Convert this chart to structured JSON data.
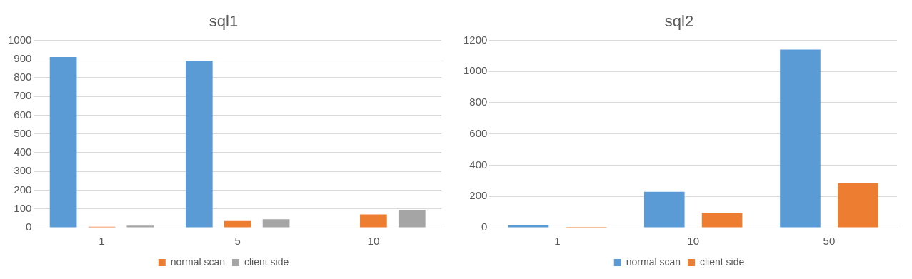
{
  "chart_data": [
    {
      "type": "bar",
      "title": "sql1",
      "categories": [
        "1",
        "5",
        "10"
      ],
      "series": [
        {
          "color": "#5b9bd5",
          "values": [
            910,
            890,
            null
          ]
        },
        {
          "name": "normal scan",
          "color": "#ed7d31",
          "values": [
            5,
            35,
            70
          ]
        },
        {
          "name": "client side",
          "color": "#a5a5a5",
          "values": [
            10,
            45,
            95
          ]
        }
      ],
      "ylim": [
        0,
        1000
      ],
      "yticks": [
        0,
        100,
        200,
        300,
        400,
        500,
        600,
        700,
        800,
        900,
        1000
      ],
      "grid": "y",
      "legend": "bottom"
    },
    {
      "type": "bar",
      "title": "sql2",
      "categories": [
        "1",
        "10",
        "50"
      ],
      "series": [
        {
          "name": "normal scan",
          "color": "#5b9bd5",
          "values": [
            15,
            230,
            1140
          ]
        },
        {
          "name": "client side",
          "color": "#ed7d31",
          "values": [
            5,
            95,
            285
          ]
        }
      ],
      "ylim": [
        0,
        1200
      ],
      "yticks": [
        0,
        200,
        400,
        600,
        800,
        1000,
        1200
      ],
      "grid": "y",
      "legend": "bottom"
    }
  ]
}
